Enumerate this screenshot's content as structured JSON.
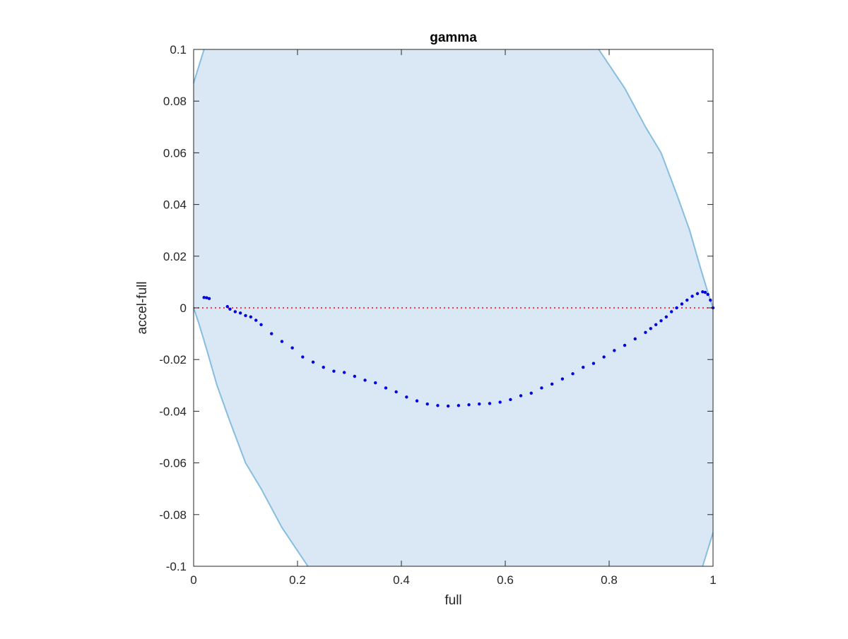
{
  "chart_data": {
    "type": "scatter",
    "title": "gamma",
    "xlabel": "full",
    "ylabel": "accel-full",
    "xlim": [
      0,
      1
    ],
    "ylim": [
      -0.1,
      0.1
    ],
    "xticks": [
      "0",
      "0.2",
      "0.4",
      "0.6",
      "0.8",
      "1"
    ],
    "yticks": [
      "-0.1",
      "-0.08",
      "-0.06",
      "-0.04",
      "-0.02",
      "0",
      "0.02",
      "0.04",
      "0.06",
      "0.08",
      "0.1"
    ],
    "grid": false,
    "legend": "none",
    "band": {
      "description": "shaded envelope region",
      "fill_color": "#d9e8f4",
      "edge_color": "#86bde0",
      "upper": [
        [
          0.0,
          0.087
        ],
        [
          0.02,
          0.1
        ]
      ],
      "upper_right": [
        [
          0.78,
          0.1
        ],
        [
          0.83,
          0.085
        ],
        [
          0.87,
          0.07
        ],
        [
          0.9,
          0.06
        ],
        [
          0.93,
          0.044
        ],
        [
          0.955,
          0.03
        ],
        [
          0.975,
          0.016
        ],
        [
          0.99,
          0.006
        ],
        [
          1.0,
          0.0
        ]
      ],
      "lower_left": [
        [
          0.0,
          0.0
        ],
        [
          0.01,
          -0.006
        ],
        [
          0.025,
          -0.016
        ],
        [
          0.045,
          -0.03
        ],
        [
          0.07,
          -0.044
        ],
        [
          0.1,
          -0.06
        ],
        [
          0.13,
          -0.07
        ],
        [
          0.17,
          -0.085
        ],
        [
          0.22,
          -0.1
        ]
      ],
      "lower_right": [
        [
          0.98,
          -0.1
        ],
        [
          1.0,
          -0.087
        ]
      ]
    },
    "reference_line": {
      "y": 0,
      "color": "#ff0000",
      "style": "dotted"
    },
    "series": [
      {
        "color": "#0000e0",
        "points": [
          [
            0.02,
            0.004
          ],
          [
            0.025,
            0.0039
          ],
          [
            0.03,
            0.0036
          ],
          [
            0.065,
            0.0005
          ],
          [
            0.07,
            -0.0005
          ],
          [
            0.08,
            -0.0015
          ],
          [
            0.09,
            -0.002
          ],
          [
            0.1,
            -0.003
          ],
          [
            0.11,
            -0.0035
          ],
          [
            0.12,
            -0.0048
          ],
          [
            0.13,
            -0.0065
          ],
          [
            0.15,
            -0.01
          ],
          [
            0.17,
            -0.013
          ],
          [
            0.19,
            -0.0155
          ],
          [
            0.21,
            -0.019
          ],
          [
            0.23,
            -0.021
          ],
          [
            0.25,
            -0.023
          ],
          [
            0.27,
            -0.0245
          ],
          [
            0.29,
            -0.025
          ],
          [
            0.31,
            -0.0265
          ],
          [
            0.33,
            -0.028
          ],
          [
            0.35,
            -0.029
          ],
          [
            0.37,
            -0.031
          ],
          [
            0.39,
            -0.0325
          ],
          [
            0.41,
            -0.0345
          ],
          [
            0.43,
            -0.036
          ],
          [
            0.45,
            -0.0372
          ],
          [
            0.47,
            -0.0378
          ],
          [
            0.49,
            -0.038
          ],
          [
            0.51,
            -0.0378
          ],
          [
            0.53,
            -0.0375
          ],
          [
            0.55,
            -0.0372
          ],
          [
            0.57,
            -0.037
          ],
          [
            0.59,
            -0.0365
          ],
          [
            0.61,
            -0.0355
          ],
          [
            0.63,
            -0.034
          ],
          [
            0.65,
            -0.033
          ],
          [
            0.67,
            -0.031
          ],
          [
            0.69,
            -0.0295
          ],
          [
            0.71,
            -0.0275
          ],
          [
            0.73,
            -0.0255
          ],
          [
            0.75,
            -0.023
          ],
          [
            0.77,
            -0.0215
          ],
          [
            0.79,
            -0.019
          ],
          [
            0.81,
            -0.0165
          ],
          [
            0.83,
            -0.0145
          ],
          [
            0.85,
            -0.012
          ],
          [
            0.87,
            -0.0095
          ],
          [
            0.88,
            -0.008
          ],
          [
            0.89,
            -0.0065
          ],
          [
            0.9,
            -0.005
          ],
          [
            0.91,
            -0.0035
          ],
          [
            0.92,
            -0.0015
          ],
          [
            0.93,
            0.0
          ],
          [
            0.94,
            0.0015
          ],
          [
            0.95,
            0.003
          ],
          [
            0.96,
            0.0045
          ],
          [
            0.97,
            0.0055
          ],
          [
            0.98,
            0.0062
          ],
          [
            0.985,
            0.006
          ],
          [
            0.99,
            0.0052
          ],
          [
            0.995,
            0.003
          ],
          [
            1.0,
            0.0
          ]
        ]
      }
    ]
  }
}
